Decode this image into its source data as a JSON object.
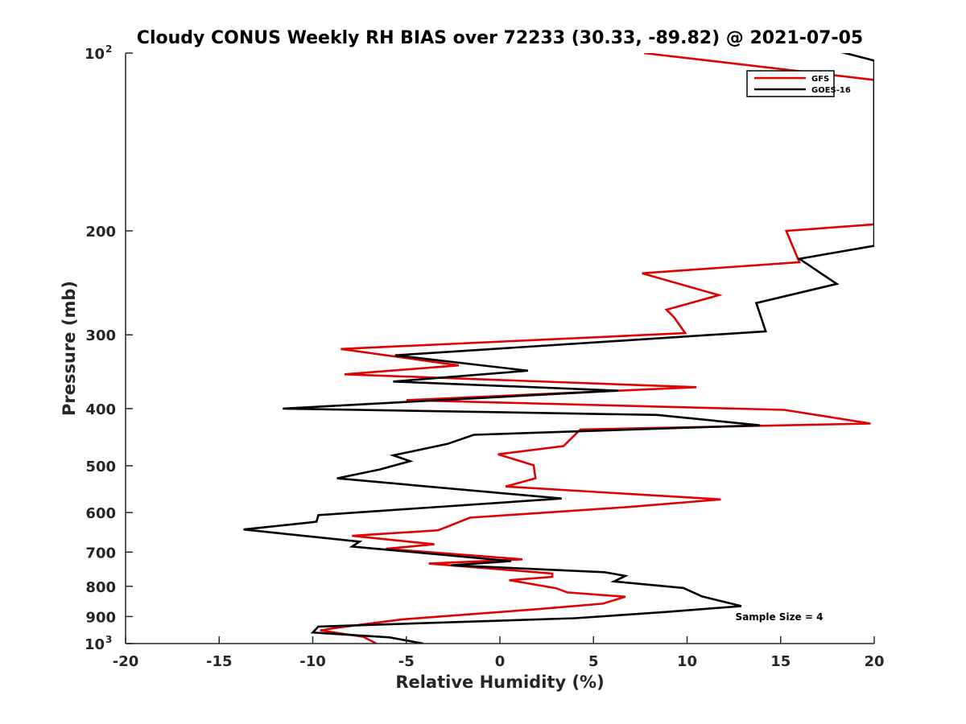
{
  "chart_data": {
    "type": "line",
    "title": "Cloudy CONUS Weekly RH BIAS over 72233 (30.33, -89.82) @ 2021-07-05",
    "xlabel": "Relative Humidity (%)",
    "ylabel": "Pressure (mb)",
    "xlim": [
      -20,
      20
    ],
    "ylim": [
      100,
      1000
    ],
    "y_scale": "log",
    "y_reversed": true,
    "x_ticks": [
      -20,
      -15,
      -10,
      -5,
      0,
      5,
      10,
      15,
      20
    ],
    "x_tick_labels": [
      "-20",
      "-15",
      "-10",
      "-5",
      "0",
      "5",
      "10",
      "15",
      "20"
    ],
    "y_ticks": [
      {
        "value": 100,
        "base": "10",
        "exp": "2"
      },
      {
        "value": 200,
        "label": "200"
      },
      {
        "value": 300,
        "label": "300"
      },
      {
        "value": 400,
        "label": "400"
      },
      {
        "value": 500,
        "label": "500"
      },
      {
        "value": 600,
        "label": "600"
      },
      {
        "value": 700,
        "label": "700"
      },
      {
        "value": 800,
        "label": "800"
      },
      {
        "value": 900,
        "label": "900"
      },
      {
        "value": 1000,
        "base": "10",
        "exp": "3"
      }
    ],
    "legend": {
      "position": "top-right",
      "entries": [
        "GFS",
        "GOES-16"
      ]
    },
    "annotation": "Sample Size = 4",
    "series": [
      {
        "name": "GFS",
        "color": "#e00000",
        "points": [
          [
            7.7,
            100
          ],
          [
            20.0,
            111
          ],
          [
            20.0,
            195
          ],
          [
            15.3,
            200
          ],
          [
            16.0,
            226
          ],
          [
            7.6,
            236
          ],
          [
            11.7,
            257
          ],
          [
            8.9,
            272
          ],
          [
            9.3,
            280
          ],
          [
            9.9,
            298
          ],
          [
            -8.5,
            317
          ],
          [
            -2.2,
            338
          ],
          [
            -8.3,
            350
          ],
          [
            10.5,
            368
          ],
          [
            -5.0,
            387
          ],
          [
            15.2,
            402
          ],
          [
            19.8,
            424
          ],
          [
            4.3,
            434
          ],
          [
            3.4,
            463
          ],
          [
            -0.1,
            478
          ],
          [
            1.8,
            499
          ],
          [
            1.9,
            525
          ],
          [
            0.3,
            542
          ],
          [
            11.8,
            570
          ],
          [
            6.9,
            587
          ],
          [
            -1.6,
            612
          ],
          [
            -3.3,
            643
          ],
          [
            -7.9,
            657
          ],
          [
            -3.5,
            679
          ],
          [
            -6.1,
            691
          ],
          [
            1.2,
            720
          ],
          [
            -3.8,
            732
          ],
          [
            2.8,
            761
          ],
          [
            2.8,
            771
          ],
          [
            0.5,
            781
          ],
          [
            3.0,
            806
          ],
          [
            3.6,
            819
          ],
          [
            6.7,
            833
          ],
          [
            5.5,
            856
          ],
          [
            2.1,
            874
          ],
          [
            -5.2,
            910
          ],
          [
            -8.7,
            940
          ],
          [
            -9.6,
            950
          ],
          [
            -7.3,
            974
          ],
          [
            -6.6,
            1000
          ]
        ]
      },
      {
        "name": "GOES-16",
        "color": "#000000",
        "points": [
          [
            17.4,
            98
          ],
          [
            20.0,
            103
          ],
          [
            20.0,
            212
          ],
          [
            16.0,
            223
          ],
          [
            18.0,
            246
          ],
          [
            13.7,
            265
          ],
          [
            14.2,
            296
          ],
          [
            -5.6,
            325
          ],
          [
            1.5,
            345
          ],
          [
            -5.7,
            360
          ],
          [
            6.3,
            373
          ],
          [
            -11.6,
            400
          ],
          [
            8.4,
            410
          ],
          [
            13.9,
            427
          ],
          [
            -1.4,
            443
          ],
          [
            -2.8,
            459
          ],
          [
            -5.7,
            480
          ],
          [
            -4.8,
            491
          ],
          [
            -6.4,
            507
          ],
          [
            -8.7,
            525
          ],
          [
            3.3,
            568
          ],
          [
            -9.7,
            606
          ],
          [
            -9.8,
            622
          ],
          [
            -13.7,
            641
          ],
          [
            -7.5,
            672
          ],
          [
            -7.9,
            685
          ],
          [
            0.6,
            725
          ],
          [
            -2.6,
            737
          ],
          [
            5.6,
            757
          ],
          [
            6.7,
            768
          ],
          [
            6.1,
            785
          ],
          [
            9.8,
            805
          ],
          [
            10.8,
            832
          ],
          [
            12.9,
            864
          ],
          [
            8.9,
            884
          ],
          [
            4.0,
            906
          ],
          [
            -9.7,
            936
          ],
          [
            -10.0,
            958
          ],
          [
            -5.9,
            976
          ],
          [
            -4.1,
            1000
          ]
        ]
      }
    ]
  }
}
